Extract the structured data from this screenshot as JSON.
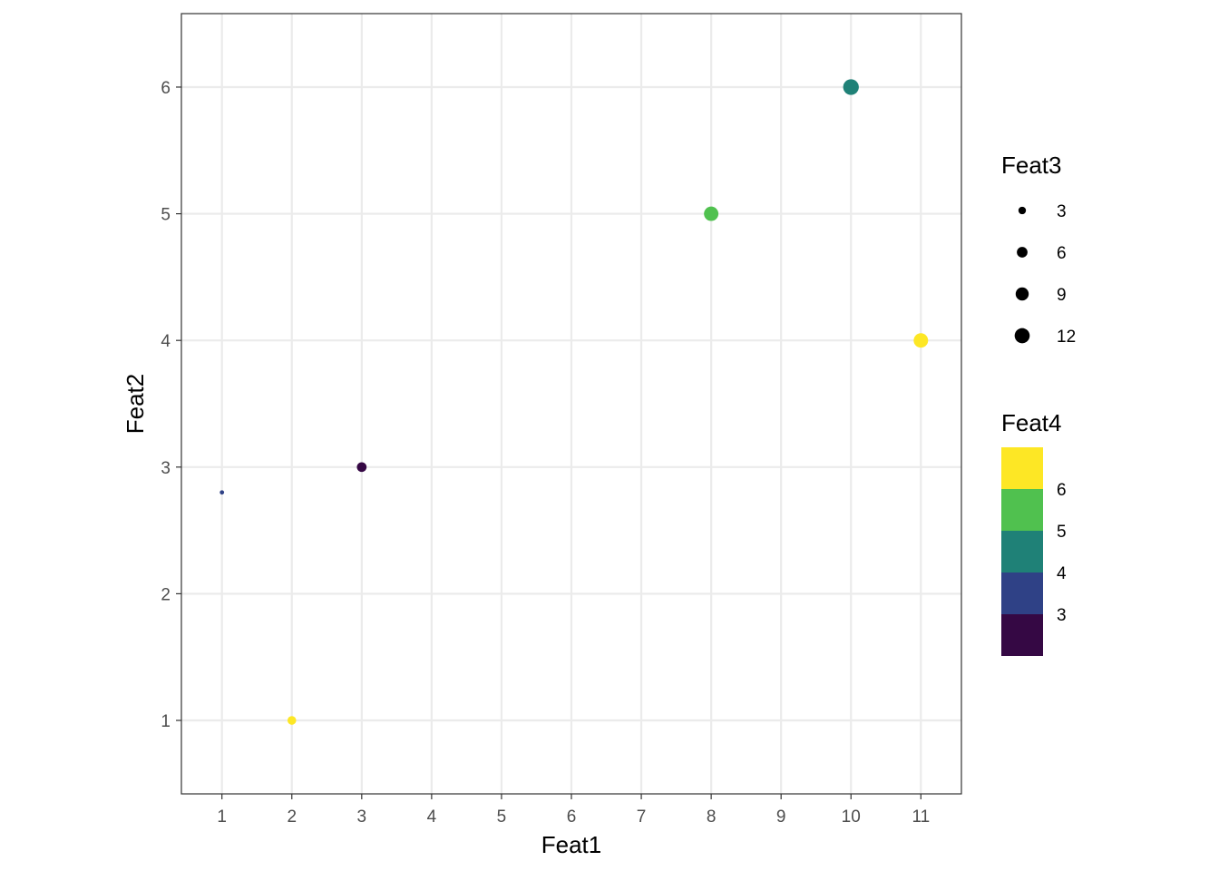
{
  "chart_data": {
    "type": "scatter",
    "title": "",
    "xlabel": "Feat1",
    "ylabel": "Feat2",
    "xlim": [
      0.42,
      11.58
    ],
    "ylim": [
      0.42,
      6.58
    ],
    "xticks": [
      1,
      2,
      3,
      4,
      5,
      6,
      7,
      8,
      9,
      10,
      11
    ],
    "yticks": [
      1,
      2,
      3,
      4,
      5,
      6
    ],
    "grid": true,
    "points": [
      {
        "x": 1,
        "y": 2.8,
        "size": 1,
        "color_value": 3.3,
        "color": "#2f4186"
      },
      {
        "x": 2,
        "y": 1,
        "size": 4,
        "color_value": 6.5,
        "color": "#fde725"
      },
      {
        "x": 3,
        "y": 3,
        "size": 5,
        "color_value": 2.5,
        "color": "#350844"
      },
      {
        "x": 8,
        "y": 5,
        "size": 11,
        "color_value": 5.5,
        "color": "#50c14f"
      },
      {
        "x": 10,
        "y": 6,
        "size": 13,
        "color_value": 4.5,
        "color": "#1f8177"
      },
      {
        "x": 11,
        "y": 4,
        "size": 11,
        "color_value": 6.5,
        "color": "#fde725"
      }
    ],
    "size_legend": {
      "title": "Feat3",
      "breaks": [
        3,
        6,
        9,
        12
      ]
    },
    "color_legend": {
      "title": "Feat4",
      "range": [
        2,
        7
      ],
      "bins": [
        {
          "from": 6,
          "to": 7,
          "color": "#fde725"
        },
        {
          "from": 5,
          "to": 6,
          "color": "#50c14f"
        },
        {
          "from": 4,
          "to": 5,
          "color": "#1f8177"
        },
        {
          "from": 3,
          "to": 4,
          "color": "#2f4186"
        },
        {
          "from": 2,
          "to": 3,
          "color": "#350844"
        }
      ],
      "labels": [
        6,
        5,
        4,
        3
      ]
    },
    "legend_position": "right"
  }
}
